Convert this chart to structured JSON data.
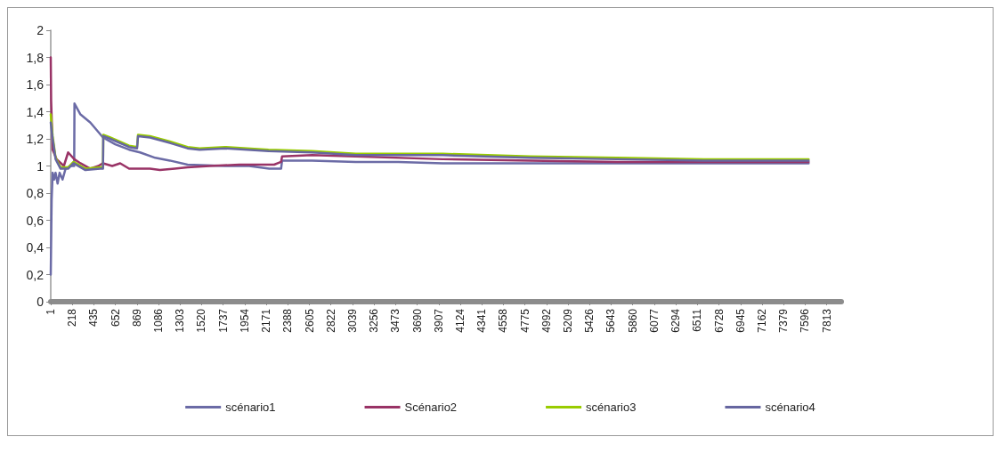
{
  "chart_data": {
    "type": "line",
    "xlim": [
      1,
      7960
    ],
    "xticks": [
      1,
      218,
      435,
      652,
      869,
      1086,
      1303,
      1520,
      1737,
      1954,
      2171,
      2388,
      2605,
      2822,
      3039,
      3256,
      3473,
      3690,
      3907,
      4124,
      4341,
      4558,
      4775,
      4992,
      5209,
      5426,
      5643,
      5860,
      6077,
      6294,
      6511,
      6728,
      6945,
      7162,
      7379,
      7596,
      7813
    ],
    "ylim": [
      0,
      2
    ],
    "yticks": [
      0,
      {
        "value": 0.2,
        "label": "0,2"
      },
      {
        "value": 0.4,
        "label": "0,4"
      },
      {
        "value": 0.6,
        "label": "0,6"
      },
      {
        "value": 0.8,
        "label": "0,8"
      },
      1,
      {
        "value": 1.2,
        "label": "1,2"
      },
      {
        "value": 1.4,
        "label": "1,4"
      },
      {
        "value": 1.6,
        "label": "1,6"
      },
      {
        "value": 1.8,
        "label": "1,8"
      },
      2
    ],
    "grid": false,
    "legend": "bottom",
    "marker": "none",
    "line_style": "solid",
    "series": [
      {
        "name": "scénario1",
        "color": "#6b6ba6",
        "x": [
          1,
          10,
          20,
          35,
          50,
          70,
          90,
          120,
          150,
          200,
          237,
          240,
          300,
          400,
          527,
          650,
          790,
          900,
          1053,
          1200,
          1378,
          1755,
          2000,
          2200,
          2320,
          2330,
          2632,
          3071,
          3500,
          3948,
          4825,
          5702,
          6578,
          7631
        ],
        "values": [
          0.2,
          0.75,
          0.95,
          0.9,
          0.95,
          0.87,
          0.95,
          0.9,
          0.98,
          1.0,
          1.0,
          1.46,
          1.38,
          1.32,
          1.21,
          1.16,
          1.12,
          1.1,
          1.06,
          1.04,
          1.01,
          1.0,
          1.0,
          0.98,
          0.98,
          1.04,
          1.04,
          1.03,
          1.03,
          1.02,
          1.02,
          1.02,
          1.02,
          1.02
        ]
      },
      {
        "name": "Scénario2",
        "color": "#993366",
        "x": [
          1,
          5,
          20,
          60,
          133,
          176,
          238,
          300,
          400,
          480,
          527,
          620,
          700,
          790,
          1000,
          1100,
          1250,
          1378,
          1600,
          1900,
          2250,
          2320,
          2330,
          2632,
          3071,
          3948,
          4825,
          5702,
          6578,
          7631
        ],
        "values": [
          1.8,
          1.48,
          1.12,
          1.05,
          1.0,
          1.1,
          1.05,
          1.02,
          0.98,
          1.0,
          1.02,
          1.0,
          1.02,
          0.98,
          0.98,
          0.97,
          0.98,
          0.99,
          1.0,
          1.01,
          1.01,
          1.03,
          1.07,
          1.08,
          1.07,
          1.05,
          1.04,
          1.03,
          1.03,
          1.03
        ]
      },
      {
        "name": "scénario3",
        "color": "#99cc00",
        "x": [
          1,
          20,
          50,
          100,
          176,
          230,
          350,
          500,
          527,
          530,
          600,
          790,
          870,
          880,
          1000,
          1200,
          1378,
          1500,
          1755,
          2194,
          2632,
          3071,
          3948,
          4825,
          5702,
          6578,
          7631
        ],
        "values": [
          1.38,
          1.22,
          1.06,
          0.99,
          0.99,
          1.03,
          0.98,
          0.99,
          0.99,
          1.23,
          1.21,
          1.15,
          1.14,
          1.23,
          1.22,
          1.18,
          1.14,
          1.13,
          1.14,
          1.12,
          1.11,
          1.09,
          1.09,
          1.07,
          1.06,
          1.05,
          1.05
        ]
      },
      {
        "name": "scénario4",
        "color": "#6666a0",
        "x": [
          1,
          20,
          50,
          100,
          176,
          230,
          350,
          500,
          527,
          530,
          600,
          790,
          870,
          880,
          1000,
          1200,
          1378,
          1500,
          1755,
          2194,
          2632,
          3071,
          3948,
          4825,
          5702,
          6578,
          7631
        ],
        "values": [
          1.32,
          1.2,
          1.05,
          0.98,
          0.98,
          1.02,
          0.97,
          0.98,
          0.98,
          1.22,
          1.2,
          1.14,
          1.13,
          1.22,
          1.21,
          1.17,
          1.13,
          1.12,
          1.13,
          1.11,
          1.1,
          1.08,
          1.08,
          1.06,
          1.05,
          1.04,
          1.04
        ]
      }
    ]
  }
}
